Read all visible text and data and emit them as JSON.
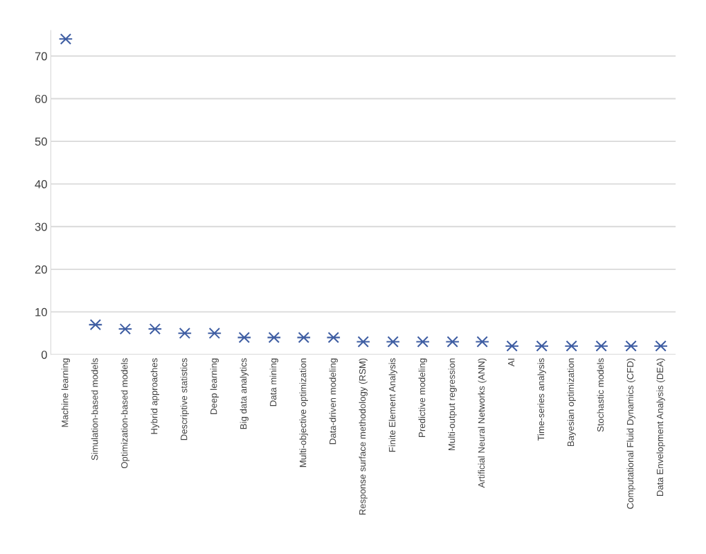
{
  "chart_data": {
    "type": "scatter",
    "categories": [
      "Machine learning",
      "Simulation-based models",
      "Optimization-based models",
      "Hybrid approaches",
      "Descriptive statistics",
      "Deep learning",
      "Big data analytics",
      "Data mining",
      "Multi-objective optimization",
      "Data-driven modeling",
      "Response surface methodology (RSM)",
      "Finite Element Analysis",
      "Predictive modeling",
      "Multi-output regression",
      "Artificial Neural Networks (ANN)",
      "AI",
      "Time-series analysis",
      "Bayesian optimization",
      "Stochastic models",
      "Computational Fluid Dynamics (CFD)",
      "Data Envelopment Analysis (DEA)"
    ],
    "values": [
      74,
      7,
      6,
      6,
      5,
      5,
      4,
      4,
      4,
      4,
      3,
      3,
      3,
      3,
      3,
      2,
      2,
      2,
      2,
      2,
      2
    ],
    "color": "#3f5ea3",
    "marker": "cross",
    "ylim": [
      0,
      76
    ],
    "yticks": [
      0,
      10,
      20,
      30,
      40,
      50,
      60,
      70
    ],
    "grid": "y"
  }
}
